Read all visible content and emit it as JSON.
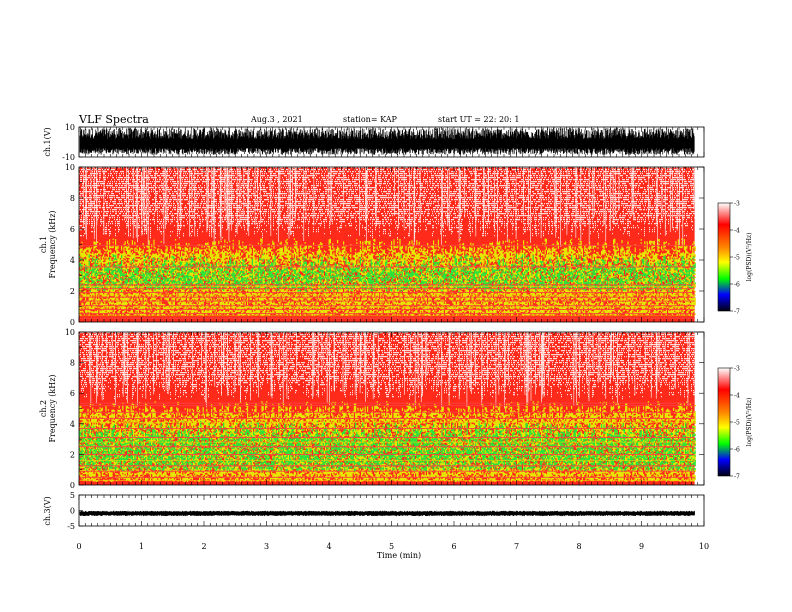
{
  "header": {
    "title": "VLF Spectra",
    "date": "Aug.3  , 2021",
    "station": "station= KAP",
    "start": "start  UT  =   22: 20: 1"
  },
  "chart_data": [
    {
      "type": "line",
      "panel": "waveform-ch1",
      "ylabel": "ch.1(V)",
      "ylim": [
        -10,
        10
      ],
      "yticks": [
        10,
        -10
      ],
      "xlim": [
        0,
        9.85
      ],
      "series": [
        {
          "description_values": "noise envelope",
          "values": [
            -4.5,
            9.5
          ]
        }
      ]
    },
    {
      "type": "heatmap",
      "panel": "spectrogram-ch1",
      "ylabel": "ch.1\nFrequency  (kHz)",
      "ylabel_lines": [
        "ch.1",
        "Frequency  (kHz)"
      ],
      "ylim": [
        0,
        10
      ],
      "yticks": [
        "10",
        "8",
        "6",
        "4",
        "2",
        "0"
      ],
      "colorbar": {
        "label": "log(PSD)(V²/Hz)",
        "ticks": [
          "-3",
          "-4",
          "-5",
          "-6",
          "-7"
        ],
        "range": [
          -7,
          -3
        ]
      }
    },
    {
      "type": "heatmap",
      "panel": "spectrogram-ch2",
      "ylabel_lines": [
        "ch.2",
        "Frequency  (kHz)"
      ],
      "ylim": [
        0,
        10
      ],
      "yticks": [
        "10",
        "8",
        "6",
        "4",
        "2",
        "0"
      ],
      "colorbar": {
        "label": "log(PSD)(V²/Hz)",
        "ticks": [
          "-3",
          "-4",
          "-5",
          "-6",
          "-7"
        ],
        "range": [
          -7,
          -3
        ]
      }
    },
    {
      "type": "line",
      "panel": "waveform-ch3",
      "ylabel": "ch.3(V)",
      "ylim": [
        -5,
        5
      ],
      "yticks": [
        "5",
        "0",
        "-5"
      ],
      "series": [
        {
          "values": [
            -1.2,
            -0.6
          ]
        }
      ]
    }
  ],
  "xaxis": {
    "label": "Time  (min)",
    "ticks": [
      "0",
      "1",
      "2",
      "3",
      "4",
      "5",
      "6",
      "7",
      "8",
      "9",
      "10"
    ],
    "xlim": [
      0,
      10
    ],
    "data_end": 9.85
  },
  "colors": {
    "red": "#ff1a1a",
    "yellow": "#e8e800",
    "green": "#22e030",
    "white": "#ffffff",
    "black": "#000000"
  }
}
